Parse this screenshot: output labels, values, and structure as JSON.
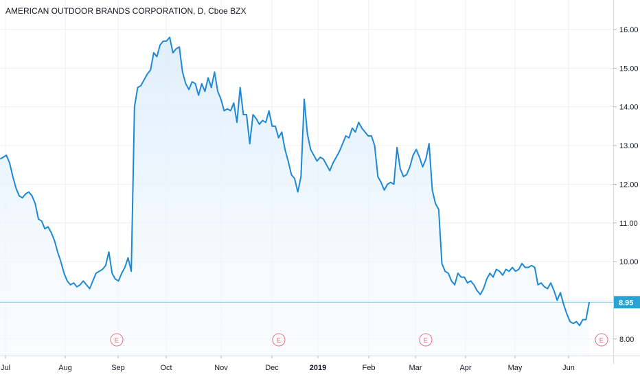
{
  "chart_data": {
    "type": "area",
    "title": "AMERICAN OUTDOOR BRANDS CORPORATION, D, Cboe BZX",
    "ylim": [
      7.5,
      16.55
    ],
    "y_ticks": [
      "8.00",
      "9.00",
      "10.00",
      "11.00",
      "12.00",
      "13.00",
      "14.00",
      "15.00",
      "16.00"
    ],
    "x_ticks": [
      "Jul",
      "Aug",
      "Sep",
      "Oct",
      "Nov",
      "Dec",
      "2019",
      "Feb",
      "Mar",
      "Apr",
      "May",
      "Jun"
    ],
    "last_price": 8.95,
    "last_price_label": "8.95",
    "earnings_label": "E",
    "earnings_markers": 4,
    "grid": true,
    "colors": {
      "line": "#1e88d3",
      "area_top": "#dcedfb",
      "area_bottom": "#f7fbff",
      "price_line": "#7cc7e6",
      "price_label_bg": "#29a3d1",
      "earnings": "#ef6b86",
      "grid": "#eceff3",
      "text": "#131722"
    },
    "series": [
      {
        "values": [
          12.65,
          12.7,
          12.75,
          12.55,
          12.2,
          11.9,
          11.7,
          11.65,
          11.75,
          11.8,
          11.7,
          11.5,
          11.1,
          11.05,
          10.85,
          10.9,
          10.75,
          10.55,
          10.25,
          10.0,
          9.7,
          9.5,
          9.4,
          9.45,
          9.35,
          9.4,
          9.5,
          9.4,
          9.3,
          9.5,
          9.7,
          9.75,
          9.8,
          9.9,
          10.25,
          9.7,
          9.55,
          9.5,
          9.7,
          9.85,
          10.1,
          9.75,
          14.0,
          14.5,
          14.55,
          14.7,
          14.85,
          14.95,
          15.4,
          15.3,
          15.6,
          15.7,
          15.7,
          15.8,
          15.4,
          15.5,
          15.55,
          14.9,
          14.6,
          14.45,
          14.65,
          14.6,
          14.3,
          14.6,
          14.4,
          14.75,
          14.5,
          14.9,
          14.4,
          14.2,
          13.9,
          13.95,
          13.9,
          14.1,
          13.6,
          14.5,
          13.8,
          13.8,
          13.05,
          13.8,
          13.7,
          13.55,
          13.65,
          13.6,
          13.9,
          13.5,
          13.5,
          13.2,
          13.35,
          12.9,
          12.6,
          12.25,
          12.15,
          11.8,
          12.2,
          14.2,
          13.3,
          12.9,
          12.75,
          12.6,
          12.7,
          12.65,
          12.5,
          12.35,
          12.55,
          12.7,
          12.85,
          13.05,
          13.25,
          13.2,
          13.45,
          13.35,
          13.6,
          13.45,
          13.35,
          13.25,
          13.25,
          13.0,
          12.2,
          12.05,
          11.85,
          12.0,
          12.05,
          12.0,
          12.95,
          12.4,
          12.2,
          12.25,
          12.45,
          12.75,
          12.9,
          12.7,
          12.45,
          12.65,
          13.05,
          11.85,
          11.5,
          11.35,
          9.95,
          9.75,
          9.7,
          9.5,
          9.4,
          9.7,
          9.6,
          9.6,
          9.45,
          9.5,
          9.4,
          9.25,
          9.15,
          9.3,
          9.55,
          9.7,
          9.6,
          9.8,
          9.75,
          9.65,
          9.8,
          9.75,
          9.85,
          9.75,
          9.8,
          9.95,
          9.85,
          9.85,
          9.9,
          9.85,
          9.4,
          9.45,
          9.35,
          9.3,
          9.45,
          9.25,
          9.0,
          9.2,
          8.9,
          8.65,
          8.45,
          8.4,
          8.45,
          8.35,
          8.5,
          8.5,
          8.95
        ]
      }
    ]
  }
}
